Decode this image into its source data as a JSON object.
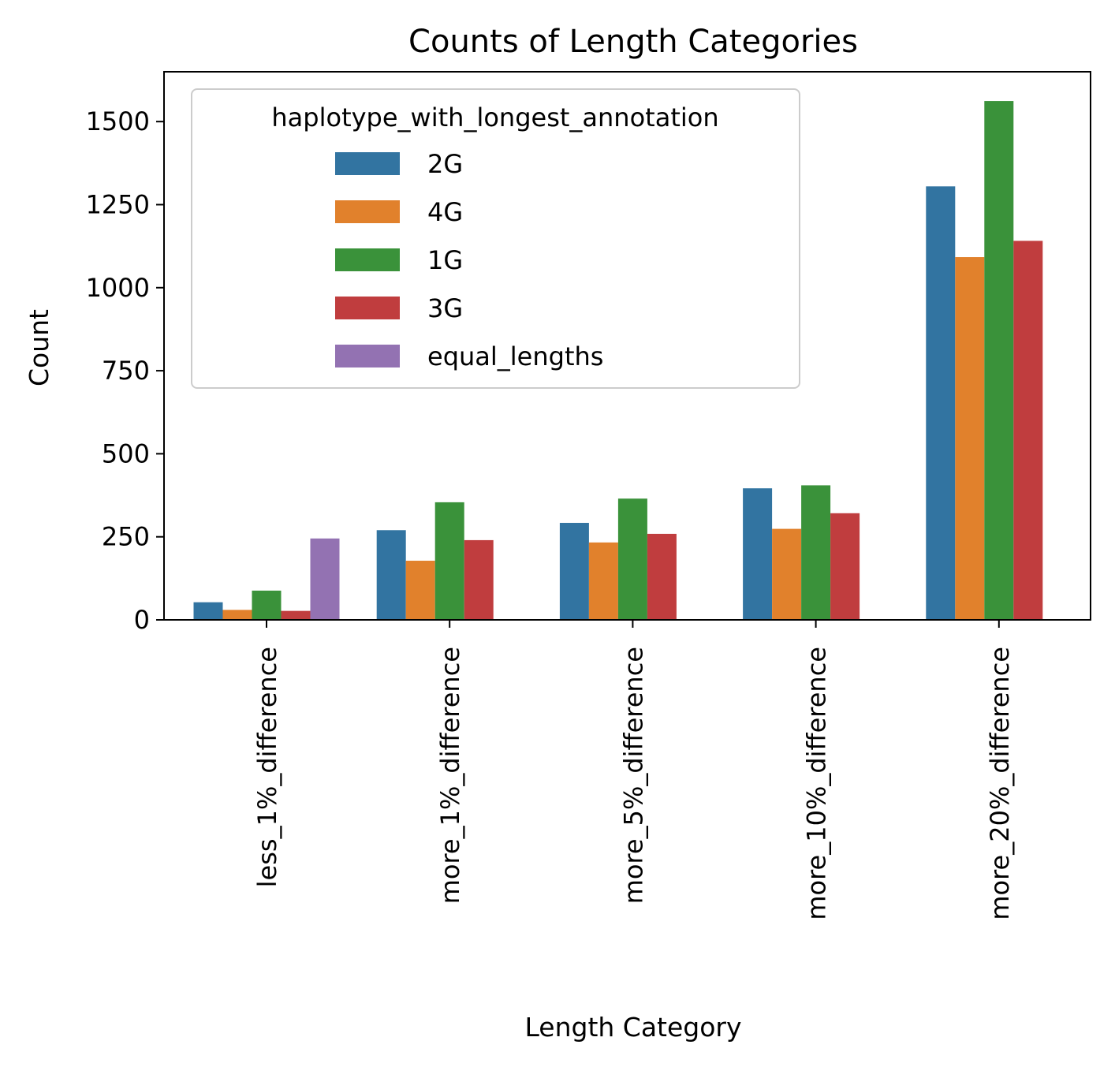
{
  "chart_data": {
    "type": "bar",
    "title": "Counts of Length Categories",
    "xlabel": "Length Category",
    "ylabel": "Count",
    "ylim": [
      0,
      1650
    ],
    "yticks": [
      0,
      250,
      500,
      750,
      1000,
      1250,
      1500
    ],
    "categories": [
      "less_1%_difference",
      "more_1%_difference",
      "more_5%_difference",
      "more_10%_difference",
      "more_20%_difference"
    ],
    "legend": {
      "title": "haplotype_with_longest_annotation",
      "placement": "upper-left"
    },
    "series": [
      {
        "name": "2G",
        "color": "#3274a1",
        "values": [
          53,
          270,
          292,
          396,
          1305
        ]
      },
      {
        "name": "4G",
        "color": "#e1812c",
        "values": [
          30,
          178,
          233,
          274,
          1092
        ]
      },
      {
        "name": "1G",
        "color": "#3a923a",
        "values": [
          88,
          354,
          365,
          405,
          1562
        ]
      },
      {
        "name": "3G",
        "color": "#c03d3e",
        "values": [
          27,
          240,
          259,
          321,
          1141
        ]
      },
      {
        "name": "equal_lengths",
        "color": "#9372b2",
        "values": [
          245,
          null,
          null,
          null,
          null
        ]
      }
    ],
    "grid": false
  }
}
